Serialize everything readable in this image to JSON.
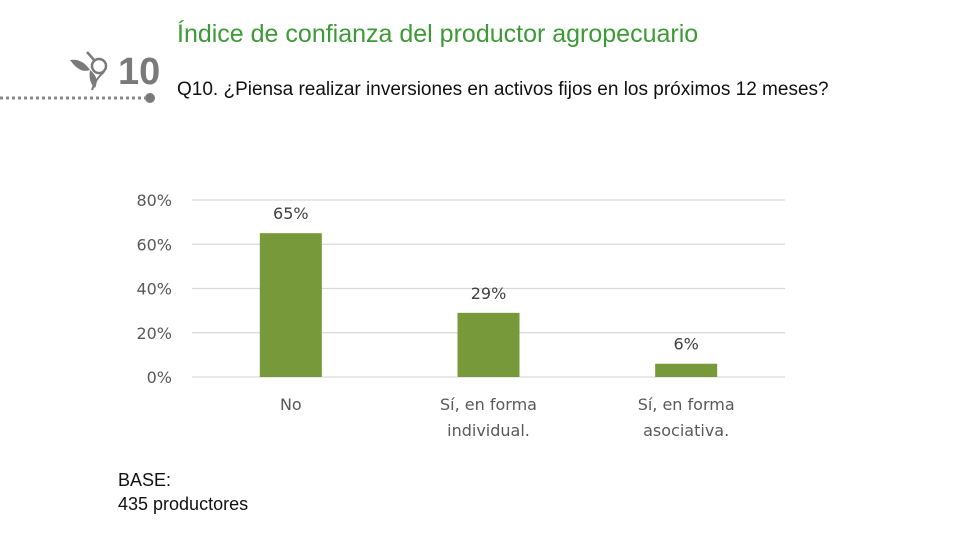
{
  "header": {
    "logo_number": "10",
    "title": "Índice de confianza del productor agropecuario",
    "question": "Q10. ¿Piensa realizar inversiones en activos fijos en los próximos 12 meses?"
  },
  "footer": {
    "base_label": "BASE:",
    "base_value": "435 productores"
  },
  "colors": {
    "bar": "#77993a",
    "title": "#3d9a36",
    "logo": "#7a7a7a"
  },
  "chart_data": {
    "type": "bar",
    "categories": [
      [
        "No"
      ],
      [
        "Sí, en forma",
        "individual."
      ],
      [
        "Sí, en forma",
        "asociativa."
      ]
    ],
    "values": [
      65,
      29,
      6
    ],
    "data_labels": [
      "65%",
      "29%",
      "6%"
    ],
    "yticks": [
      "0%",
      "20%",
      "40%",
      "60%",
      "80%"
    ],
    "ylim": [
      0,
      80
    ],
    "grid": true,
    "title": "",
    "xlabel": "",
    "ylabel": ""
  }
}
